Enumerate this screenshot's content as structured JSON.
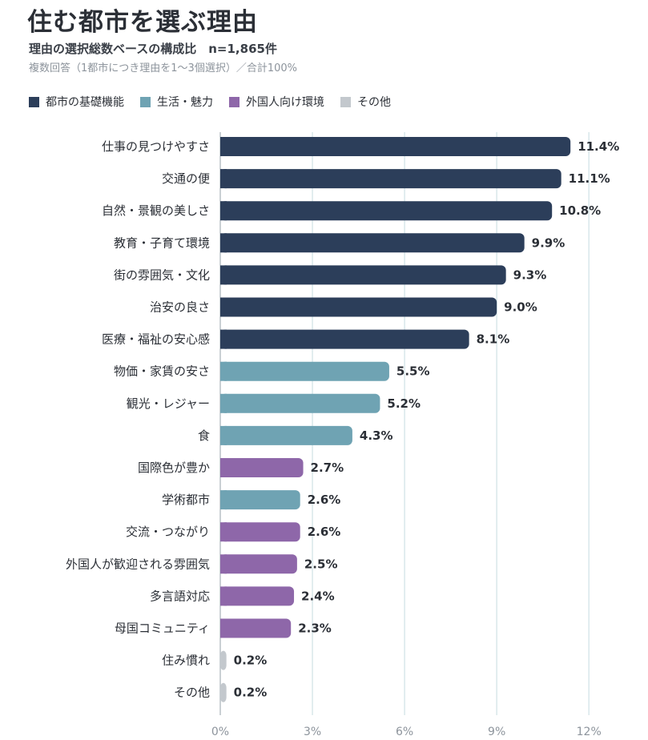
{
  "header": {
    "title": "住む都市を選ぶ理由",
    "subtitle": "理由の選択総数ベースの構成比　n=1,865件",
    "note": "複数回答（1都市につき理由を1〜3個選択）／合計100%"
  },
  "legend": [
    {
      "label": "都市の基礎機能",
      "color": "#2c3e5a"
    },
    {
      "label": "生活・魅力",
      "color": "#6fa3b3"
    },
    {
      "label": "外国人向け環境",
      "color": "#8e67a9"
    },
    {
      "label": "その他",
      "color": "#c3c8cd"
    }
  ],
  "chart_data": {
    "type": "bar",
    "orientation": "horizontal",
    "categories": [
      "仕事の見つけやすさ",
      "交通の便",
      "自然・景観の美しさ",
      "教育・子育て環境",
      "街の雰囲気・文化",
      "治安の良さ",
      "医療・福祉の安心感",
      "物価・家賃の安さ",
      "観光・レジャー",
      "食",
      "国際色が豊か",
      "学術都市",
      "交流・つながり",
      "外国人が歓迎される雰囲気",
      "多言語対応",
      "母国コミュニティ",
      "住み慣れ",
      "その他"
    ],
    "values": [
      11.4,
      11.1,
      10.8,
      9.9,
      9.3,
      9.0,
      8.1,
      5.5,
      5.2,
      4.3,
      2.7,
      2.6,
      2.6,
      2.5,
      2.4,
      2.3,
      0.2,
      0.2
    ],
    "value_labels": [
      "11.4%",
      "11.1%",
      "10.8%",
      "9.9%",
      "9.3%",
      "9.0%",
      "8.1%",
      "5.5%",
      "5.2%",
      "4.3%",
      "2.7%",
      "2.6%",
      "2.6%",
      "2.5%",
      "2.4%",
      "2.3%",
      "0.2%",
      "0.2%"
    ],
    "groups": [
      "都市の基礎機能",
      "都市の基礎機能",
      "都市の基礎機能",
      "都市の基礎機能",
      "都市の基礎機能",
      "都市の基礎機能",
      "都市の基礎機能",
      "生活・魅力",
      "生活・魅力",
      "生活・魅力",
      "外国人向け環境",
      "生活・魅力",
      "外国人向け環境",
      "外国人向け環境",
      "外国人向け環境",
      "外国人向け環境",
      "その他",
      "その他"
    ],
    "xlim": [
      0,
      12
    ],
    "xticks": [
      0,
      3,
      6,
      9,
      12
    ],
    "xtick_labels": [
      "0%",
      "3%",
      "6%",
      "9%",
      "12%"
    ],
    "grid": true,
    "legend_position": "top-left"
  }
}
